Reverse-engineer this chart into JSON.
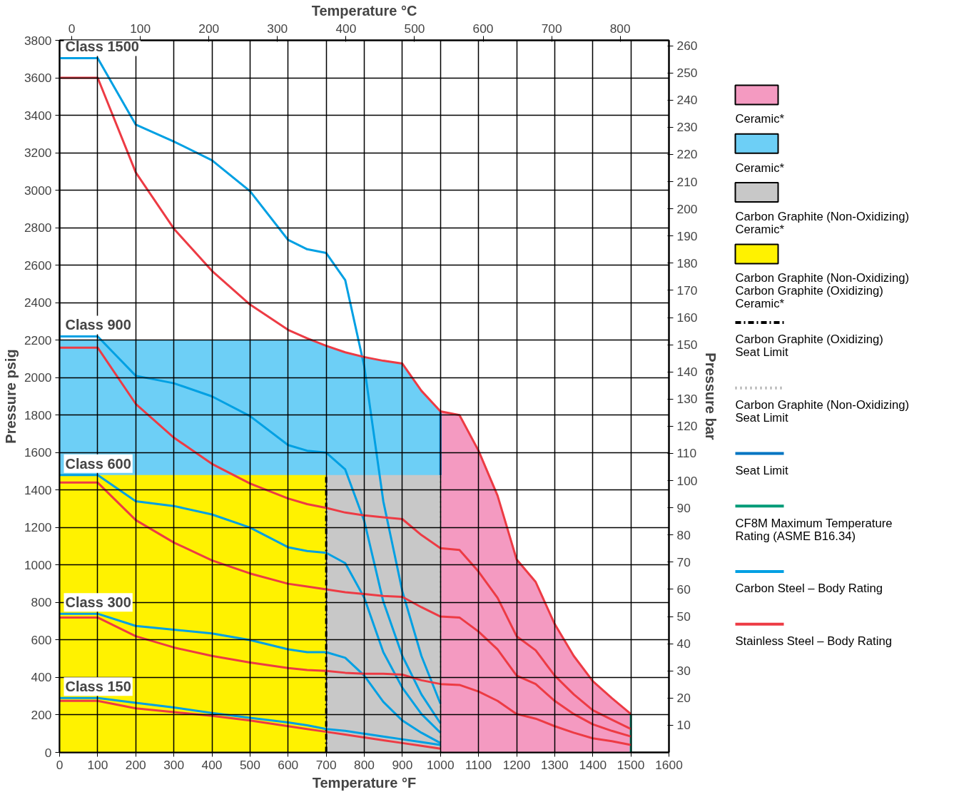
{
  "chart_data": {
    "type": "line",
    "xlabel": "Temperature °F",
    "x2label": "Temperature °C",
    "ylabel": "Pressure psig",
    "y2label": "Pressure bar",
    "xlim": [
      0,
      1600
    ],
    "xticks": [
      0,
      100,
      200,
      300,
      400,
      500,
      600,
      700,
      800,
      900,
      1000,
      1100,
      1200,
      1300,
      1400,
      1500,
      1600
    ],
    "ylim": [
      0,
      3800
    ],
    "yticks": [
      0,
      200,
      400,
      600,
      800,
      1000,
      1200,
      1400,
      1600,
      1800,
      2000,
      2200,
      2400,
      2600,
      2800,
      3000,
      3200,
      3400,
      3600,
      3800
    ],
    "x2lim": [
      -17.78,
      871.1
    ],
    "x2ticks": [
      0,
      100,
      200,
      300,
      400,
      500,
      600,
      700,
      800
    ],
    "y2lim": [
      0,
      262.0
    ],
    "y2ticks": [
      10,
      20,
      30,
      40,
      50,
      60,
      70,
      80,
      90,
      100,
      110,
      120,
      130,
      140,
      150,
      160,
      170,
      180,
      190,
      200,
      210,
      220,
      230,
      240,
      250,
      260
    ],
    "grid": true,
    "legend": "right",
    "series": [
      {
        "type": "area",
        "name": "Ceramic*",
        "color": "#f49ac1",
        "x": [
          1000,
          1050,
          1100,
          1150,
          1200,
          1250,
          1300,
          1350,
          1400,
          1450,
          1500
        ],
        "values": [
          1820,
          1800,
          1610,
          1370,
          1030,
          910,
          685,
          515,
          380,
          290,
          205
        ]
      },
      {
        "type": "area",
        "name": "Ceramic*",
        "color": "#6dcff6",
        "x": [
          0,
          660,
          700,
          750,
          800,
          850,
          900,
          950,
          1000
        ],
        "values": [
          2200,
          2200,
          2170,
          2135,
          2110,
          2090,
          2075,
          1930,
          1820
        ]
      },
      {
        "type": "area",
        "name": "Carbon Graphite (Non-Oxidizing)\nCeramic*",
        "color": "#c8c8c8",
        "x": [
          700,
          1000
        ],
        "values": [
          1480,
          1480
        ]
      },
      {
        "type": "area",
        "name": "Carbon Graphite (Non-Oxidizing)\nCarbon Graphite (Oxidizing)\nCeramic*",
        "color": "#fff200",
        "x": [
          0,
          700
        ],
        "values": [
          1480,
          1480
        ]
      },
      {
        "name": "Carbon Graphite (Oxidizing)\nSeat Limit",
        "color": "#000000",
        "line_style": "dashed",
        "x": [
          700,
          700
        ],
        "values": [
          0,
          1480
        ]
      },
      {
        "name": "Carbon Graphite (Non-Oxidizing)\nSeat Limit",
        "color": "#aaaaaa",
        "line_style": "dotted",
        "x": [
          1000,
          1000
        ],
        "values": [
          0,
          1480
        ]
      },
      {
        "name": "Seat Limit",
        "color": "#0075c2",
        "x": [
          1000,
          1000
        ],
        "values": [
          1480,
          1820
        ]
      },
      {
        "name": "CF8M Maximum Temperature\nRating  (ASME B16.34)",
        "color": "#009b77",
        "x": [
          1500,
          1500
        ],
        "values": [
          0,
          205
        ]
      },
      {
        "name": "Carbon Steel – Body Rating",
        "color": "#00a0e3",
        "x": [
          0,
          100,
          200,
          300,
          400,
          500,
          600,
          650,
          700,
          750,
          800,
          850,
          900,
          950,
          1000
        ],
        "values": [
          3705,
          3705,
          3350,
          3260,
          3160,
          2995,
          2735,
          2685,
          2665,
          2520,
          2060,
          1340,
          860,
          515,
          260
        ]
      },
      {
        "color": "#00a0e3",
        "x": [
          0,
          100,
          200,
          300,
          400,
          500,
          600,
          650,
          700,
          750,
          800,
          850,
          900,
          950,
          1000
        ],
        "values": [
          2220,
          2220,
          2010,
          1970,
          1900,
          1795,
          1640,
          1610,
          1600,
          1510,
          1235,
          805,
          515,
          310,
          155
        ]
      },
      {
        "color": "#00a0e3",
        "x": [
          0,
          100,
          200,
          300,
          400,
          500,
          600,
          650,
          700,
          750,
          800,
          850,
          900,
          950,
          1000
        ],
        "values": [
          1480,
          1480,
          1340,
          1315,
          1270,
          1200,
          1095,
          1075,
          1065,
          1010,
          825,
          535,
          345,
          205,
          105
        ]
      },
      {
        "color": "#00a0e3",
        "x": [
          0,
          100,
          200,
          300,
          400,
          500,
          600,
          650,
          700,
          750,
          800,
          850,
          900,
          950,
          1000
        ],
        "values": [
          740,
          740,
          675,
          655,
          635,
          600,
          550,
          535,
          535,
          505,
          410,
          270,
          170,
          105,
          50
        ]
      },
      {
        "color": "#00a0e3",
        "x": [
          0,
          100,
          200,
          300,
          400,
          500,
          600,
          650,
          700,
          750,
          800,
          850,
          900,
          950,
          1000
        ],
        "values": [
          290,
          290,
          265,
          240,
          210,
          185,
          160,
          145,
          125,
          115,
          100,
          85,
          70,
          55,
          40
        ]
      },
      {
        "name": "Stainless Steel – Body Rating",
        "color": "#ed3b44",
        "x": [
          0,
          100,
          200,
          300,
          400,
          500,
          600,
          650,
          700,
          750,
          800,
          850,
          900,
          950,
          1000,
          1050,
          1100,
          1150,
          1200,
          1250,
          1300,
          1350,
          1400,
          1450,
          1500
        ],
        "values": [
          3600,
          3600,
          3095,
          2795,
          2570,
          2390,
          2255,
          2210,
          2170,
          2135,
          2110,
          2090,
          2075,
          1930,
          1820,
          1800,
          1610,
          1370,
          1030,
          910,
          685,
          515,
          380,
          290,
          205
        ]
      },
      {
        "color": "#ed3b44",
        "x": [
          0,
          100,
          200,
          300,
          400,
          500,
          600,
          650,
          700,
          750,
          800,
          850,
          900,
          950,
          1000,
          1050,
          1100,
          1150,
          1200,
          1250,
          1300,
          1350,
          1400,
          1450,
          1500
        ],
        "values": [
          2160,
          2160,
          1860,
          1680,
          1540,
          1435,
          1355,
          1325,
          1305,
          1280,
          1265,
          1255,
          1245,
          1160,
          1090,
          1080,
          965,
          825,
          620,
          545,
          410,
          310,
          225,
          175,
          125
        ]
      },
      {
        "color": "#ed3b44",
        "x": [
          0,
          100,
          200,
          300,
          400,
          500,
          600,
          650,
          700,
          750,
          800,
          850,
          900,
          950,
          1000,
          1050,
          1100,
          1150,
          1200,
          1250,
          1300,
          1350,
          1400,
          1450,
          1500
        ],
        "values": [
          1440,
          1440,
          1240,
          1120,
          1025,
          955,
          900,
          885,
          870,
          855,
          845,
          835,
          830,
          775,
          725,
          720,
          645,
          550,
          410,
          365,
          275,
          205,
          150,
          115,
          85
        ]
      },
      {
        "color": "#ed3b44",
        "x": [
          0,
          100,
          200,
          300,
          400,
          500,
          600,
          650,
          700,
          750,
          800,
          850,
          900,
          950,
          1000,
          1050,
          1100,
          1150,
          1200,
          1250,
          1300,
          1350,
          1400,
          1450,
          1500
        ],
        "values": [
          720,
          720,
          620,
          560,
          515,
          480,
          450,
          440,
          435,
          425,
          420,
          420,
          415,
          385,
          365,
          360,
          325,
          275,
          205,
          180,
          140,
          105,
          75,
          60,
          40
        ]
      },
      {
        "color": "#ed3b44",
        "x": [
          0,
          100,
          200,
          300,
          400,
          500,
          600,
          650,
          700,
          750,
          800,
          850,
          900,
          950,
          1000
        ],
        "values": [
          275,
          275,
          235,
          215,
          195,
          170,
          140,
          125,
          110,
          95,
          80,
          65,
          50,
          35,
          20
        ]
      }
    ],
    "annotations": [
      "Class 1500",
      "Class 900",
      "Class 600",
      "Class 300",
      "Class 150"
    ]
  }
}
